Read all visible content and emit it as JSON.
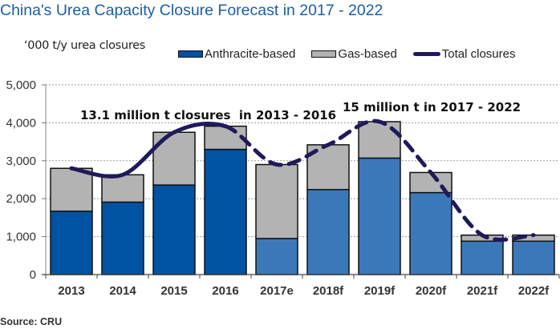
{
  "chart_data": {
    "type": "bar",
    "stacked": true,
    "title": "China's Urea Capacity Closure Forecast in 2017 - 2022",
    "ylabel": "‘000 t/y urea closures",
    "xlabel": "",
    "ylim": [
      0,
      5000
    ],
    "yticks": [
      0,
      1000,
      2000,
      3000,
      4000,
      5000
    ],
    "ytick_labels": [
      "0",
      "1,000",
      "2,000",
      "3,000",
      "4,000",
      "5,000"
    ],
    "grid": true,
    "legend_position": "top-right",
    "categories": [
      "2013",
      "2014",
      "2015",
      "2016",
      "2017e",
      "2018f",
      "2019f",
      "2020f",
      "2021f",
      "2022f"
    ],
    "forecast_from_index": 4,
    "series": [
      {
        "name": "Anthracite-based",
        "type": "bar",
        "color": "#0052a3",
        "forecast_color": "#3b78ba",
        "values": [
          1670,
          1910,
          2360,
          3300,
          950,
          2240,
          3070,
          2160,
          880,
          880
        ]
      },
      {
        "name": "Gas-based",
        "type": "bar",
        "color": "#b3b3b3",
        "values": [
          1130,
          720,
          1390,
          610,
          1950,
          1180,
          960,
          530,
          160,
          160
        ]
      },
      {
        "name": "Total closures",
        "type": "line",
        "color": "#1f1a5a",
        "values": [
          2800,
          2630,
          3750,
          3910,
          2900,
          3420,
          4030,
          2690,
          1040,
          1040
        ],
        "solid_until_index": 3,
        "dashed_after": true
      }
    ],
    "annotations": [
      {
        "text": "13.1 million t closures  in 2013 - 2016"
      },
      {
        "text": "15 million t in 2017 - 2022"
      }
    ]
  },
  "source": "Source: CRU"
}
